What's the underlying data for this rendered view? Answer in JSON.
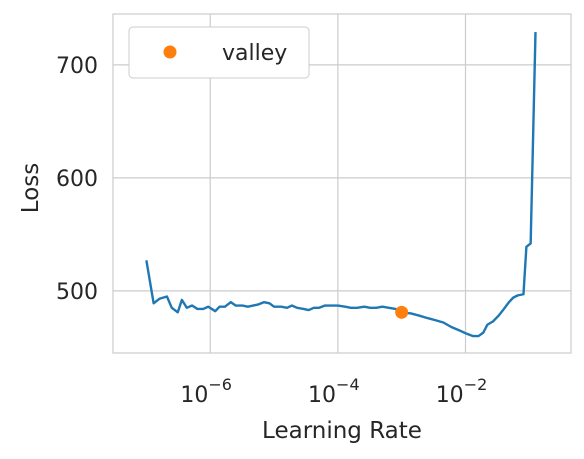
{
  "chart_data": {
    "type": "line",
    "title": "",
    "xlabel": "Learning Rate",
    "ylabel": "Loss",
    "xscale": "log",
    "xlim": [
      3e-08,
      0.45
    ],
    "ylim": [
      445,
      745
    ],
    "grid": true,
    "legend": {
      "placement": "top-left",
      "entries": [
        "valley"
      ]
    },
    "x_ticks": [
      {
        "value": 1e-06,
        "base": "10",
        "exp": "−6"
      },
      {
        "value": 0.0001,
        "base": "10",
        "exp": "−4"
      },
      {
        "value": 0.01,
        "base": "10",
        "exp": "−2"
      }
    ],
    "y_ticks": [
      500,
      600,
      700
    ],
    "series": [
      {
        "color": "#1f77b4",
        "points": [
          [
            1e-07,
            527
          ],
          [
            1.3e-07,
            489
          ],
          [
            1.6e-07,
            493
          ],
          [
            2.1e-07,
            495
          ],
          [
            2.5e-07,
            485
          ],
          [
            3.1e-07,
            481
          ],
          [
            3.6e-07,
            492
          ],
          [
            4.3e-07,
            485
          ],
          [
            5.2e-07,
            487
          ],
          [
            6.3e-07,
            484
          ],
          [
            7.8e-07,
            484
          ],
          [
            9.3e-07,
            486
          ],
          [
            1.2e-06,
            482
          ],
          [
            1.4e-06,
            486
          ],
          [
            1.7e-06,
            486
          ],
          [
            2.1e-06,
            490
          ],
          [
            2.5e-06,
            487
          ],
          [
            3.2e-06,
            487
          ],
          [
            3.9e-06,
            486
          ],
          [
            4.7e-06,
            487
          ],
          [
            5.7e-06,
            488
          ],
          [
            7e-06,
            490
          ],
          [
            8.5e-06,
            489
          ],
          [
            1e-05,
            486
          ],
          [
            1.3e-05,
            486
          ],
          [
            1.6e-05,
            485
          ],
          [
            1.9e-05,
            487
          ],
          [
            2.3e-05,
            485
          ],
          [
            2.9e-05,
            484
          ],
          [
            3.5e-05,
            483
          ],
          [
            4.2e-05,
            485
          ],
          [
            5.1e-05,
            485
          ],
          [
            6.3e-05,
            487
          ],
          [
            8e-05,
            487
          ],
          [
            0.0001,
            487
          ],
          [
            0.00013,
            486
          ],
          [
            0.00016,
            485
          ],
          [
            0.0002,
            485
          ],
          [
            0.00026,
            486
          ],
          [
            0.00032,
            485
          ],
          [
            0.0004,
            485
          ],
          [
            0.0005,
            486
          ],
          [
            0.00063,
            485
          ],
          [
            0.0008,
            484
          ],
          [
            0.001,
            481
          ],
          [
            0.0014,
            480
          ],
          [
            0.0019,
            478
          ],
          [
            0.0025,
            476
          ],
          [
            0.0034,
            474
          ],
          [
            0.0045,
            472
          ],
          [
            0.006,
            468
          ],
          [
            0.008,
            465
          ],
          [
            0.0105,
            462
          ],
          [
            0.013,
            460
          ],
          [
            0.016,
            460
          ],
          [
            0.019,
            463
          ],
          [
            0.022,
            470
          ],
          [
            0.027,
            473
          ],
          [
            0.033,
            478
          ],
          [
            0.04,
            484
          ],
          [
            0.048,
            490
          ],
          [
            0.056,
            494
          ],
          [
            0.066,
            496
          ],
          [
            0.081,
            497
          ],
          [
            0.09,
            539
          ],
          [
            0.105,
            542
          ],
          [
            0.125,
            729
          ]
        ]
      },
      {
        "name": "valley",
        "color": "#ff7f0e",
        "points": [
          [
            0.001,
            481
          ]
        ]
      }
    ]
  }
}
